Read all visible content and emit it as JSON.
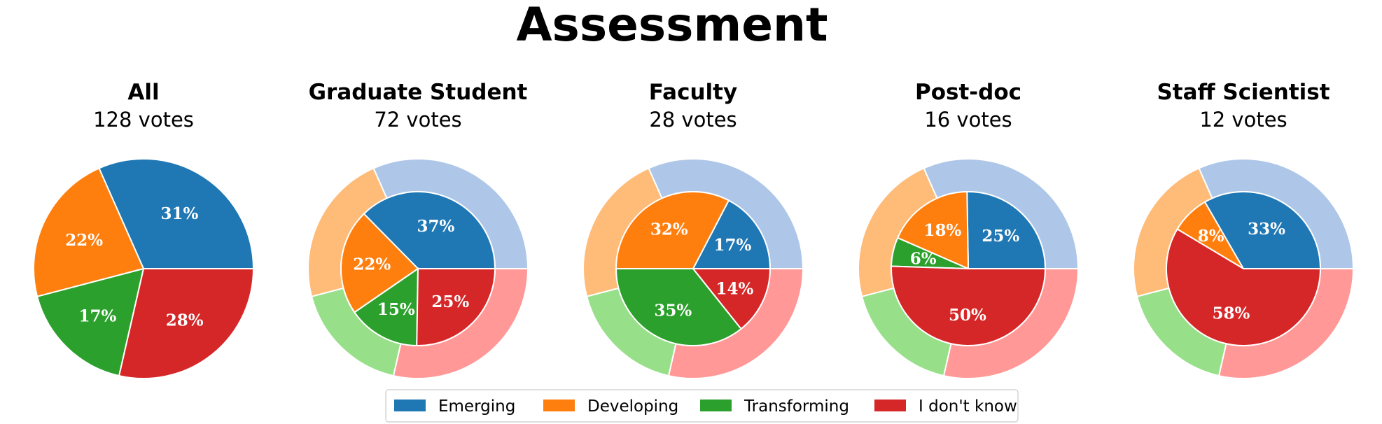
{
  "title": "Assessment",
  "categories": [
    "Emerging",
    "Developing",
    "Transforming",
    "I don't know"
  ],
  "colors": {
    "Emerging": "#1f77b4",
    "Developing": "#ff7f0e",
    "Transforming": "#2ca02c",
    "I don't know": "#d62728"
  },
  "ring_colors": {
    "Emerging": "#aec7e8",
    "Developing": "#ffbb78",
    "Transforming": "#98df8a",
    "I don't know": "#ff9896"
  },
  "chart_data": [
    {
      "type": "pie",
      "title": "All",
      "subtitle": "128 votes",
      "categories": [
        "Emerging",
        "Developing",
        "Transforming",
        "I don't know"
      ],
      "values": [
        31,
        22,
        17,
        28
      ],
      "labels": [
        "31%",
        "22%",
        "17%",
        "28%"
      ]
    },
    {
      "type": "pie",
      "title": "Graduate Student",
      "subtitle": "72 votes",
      "categories": [
        "Emerging",
        "Developing",
        "Transforming",
        "I don't know"
      ],
      "values": [
        37,
        22,
        15,
        25
      ],
      "labels": [
        "37%",
        "22%",
        "15%",
        "25%"
      ],
      "reference_ring": [
        31,
        22,
        17,
        28
      ]
    },
    {
      "type": "pie",
      "title": "Faculty",
      "subtitle": "28 votes",
      "categories": [
        "Emerging",
        "Developing",
        "Transforming",
        "I don't know"
      ],
      "values": [
        17,
        32,
        35,
        14
      ],
      "labels": [
        "17%",
        "32%",
        "35%",
        "14%"
      ],
      "reference_ring": [
        31,
        22,
        17,
        28
      ]
    },
    {
      "type": "pie",
      "title": "Post-doc",
      "subtitle": "16 votes",
      "categories": [
        "Emerging",
        "Developing",
        "Transforming",
        "I don't know"
      ],
      "values": [
        25,
        18,
        6,
        50
      ],
      "labels": [
        "25%",
        "18%",
        "6%",
        "50%"
      ],
      "reference_ring": [
        31,
        22,
        17,
        28
      ]
    },
    {
      "type": "pie",
      "title": "Staff Scientist",
      "subtitle": "12 votes",
      "categories": [
        "Emerging",
        "Developing",
        "Transforming",
        "I don't know"
      ],
      "values": [
        33,
        8,
        0,
        58
      ],
      "labels": [
        "33%",
        "8%",
        "",
        "58%"
      ],
      "reference_ring": [
        31,
        22,
        17,
        28
      ]
    }
  ],
  "legend": {
    "position": "bottom-center",
    "entries": [
      "Emerging",
      "Developing",
      "Transforming",
      "I don't know"
    ]
  }
}
